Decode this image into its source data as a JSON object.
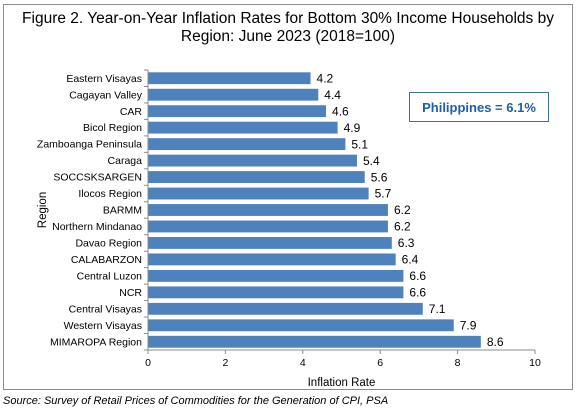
{
  "chart_data": {
    "type": "bar",
    "orientation": "horizontal",
    "title_lines": [
      "Figure 2. Year-on-Year Inflation Rates for Bottom 30% Income Households by",
      "Region: June 2023 (2018=100)"
    ],
    "categories": [
      "Eastern Visayas",
      "Cagayan Valley",
      "CAR",
      "Bicol Region",
      "Zamboanga Peninsula",
      "Caraga",
      "SOCCSKSARGEN",
      "Ilocos Region",
      "BARMM",
      "Northern Mindanao",
      "Davao Region",
      "CALABARZON",
      "Central Luzon",
      "NCR",
      "Central Visayas",
      "Western Visayas",
      "MIMAROPA Region"
    ],
    "values": [
      4.2,
      4.4,
      4.6,
      4.9,
      5.1,
      5.4,
      5.6,
      5.7,
      6.2,
      6.2,
      6.3,
      6.4,
      6.6,
      6.6,
      7.1,
      7.9,
      8.6
    ],
    "value_labels": [
      "4.2",
      "4.4",
      "4.6",
      "4.9",
      "5.1",
      "5.4",
      "5.6",
      "5.7",
      "6.2",
      "6.2",
      "6.3",
      "6.4",
      "6.6",
      "6.6",
      "7.1",
      "7.9",
      "8.6"
    ],
    "xlabel": "Inflation Rate",
    "ylabel": "Region",
    "xlim": [
      0,
      10
    ],
    "xticks": [
      0,
      2,
      4,
      6,
      8,
      10
    ],
    "grid": false,
    "bar_color": "#4f81bd",
    "annotation": "Philippines = 6.1%"
  },
  "source": "Source: Survey of Retail Prices of Commodities for the Generation of CPI, PSA"
}
